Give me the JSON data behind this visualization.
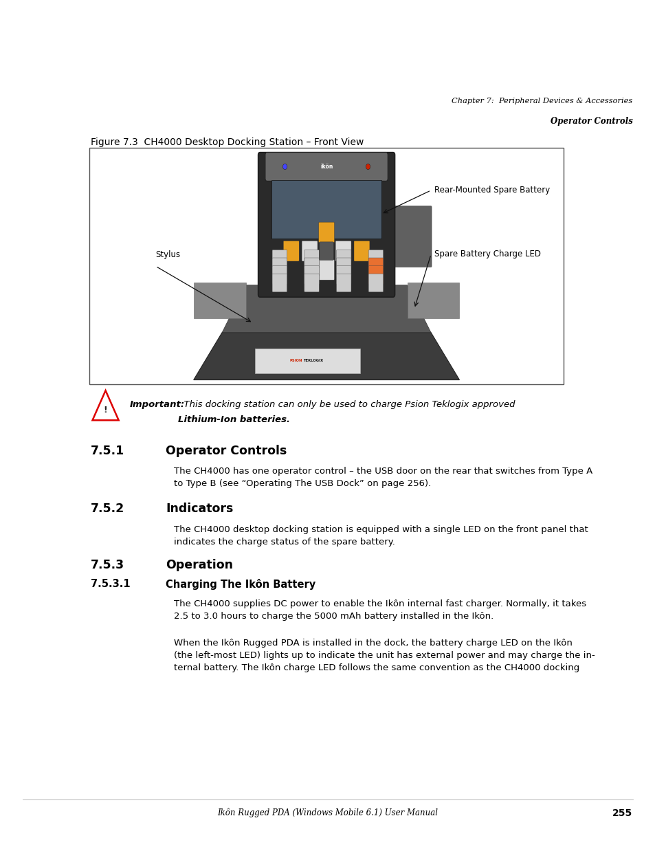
{
  "bg_color": "#ffffff",
  "page_width": 9.54,
  "page_height": 12.35,
  "header_line1": "Chapter 7:  Peripheral Devices & Accessories",
  "header_line2": "Operator Controls",
  "figure_caption": "Figure 7.3  CH4000 Desktop Docking Station – Front View",
  "label_stylus": "Stylus",
  "label_rear_battery": "Rear-Mounted Spare Battery",
  "label_spare_led": "Spare Battery Charge LED",
  "section_751_num": "7.5.1",
  "section_751_title": "Operator Controls",
  "section_751_body": "The CH4000 has one operator control – the USB door on the rear that switches from Type A\nto Type B (see “Operating The USB Dock” on page 256).",
  "section_752_num": "7.5.2",
  "section_752_title": "Indicators",
  "section_752_body": "The CH4000 desktop docking station is equipped with a single LED on the front panel that\nindicates the charge status of the spare battery.",
  "section_753_num": "7.5.3",
  "section_753_title": "Operation",
  "section_7531_num": "7.5.3.1",
  "section_7531_title": "Charging The Ikôn Battery",
  "section_7531_body1": "The CH4000 supplies DC power to enable the Ikôn internal fast charger. Normally, it takes\n2.5 to 3.0 hours to charge the 5000 mAh battery installed in the Ikôn.",
  "section_7531_body2": "When the Ikôn Rugged PDA is installed in the dock, the battery charge LED on the Ikôn\n(the left-most LED) lights up to indicate the unit has external power and may charge the in-\nternal battery. The Ikôn charge LED follows the same convention as the CH4000 docking",
  "footer_text": "Ikôn Rugged PDA (Windows Mobile 6.1) User Manual",
  "footer_page": "255",
  "warning_bold": "Important:",
  "warning_line1": "  This docking station can only be used to charge Psion Teklogix approved",
  "warning_line2": "Lithium-Ion batteries."
}
